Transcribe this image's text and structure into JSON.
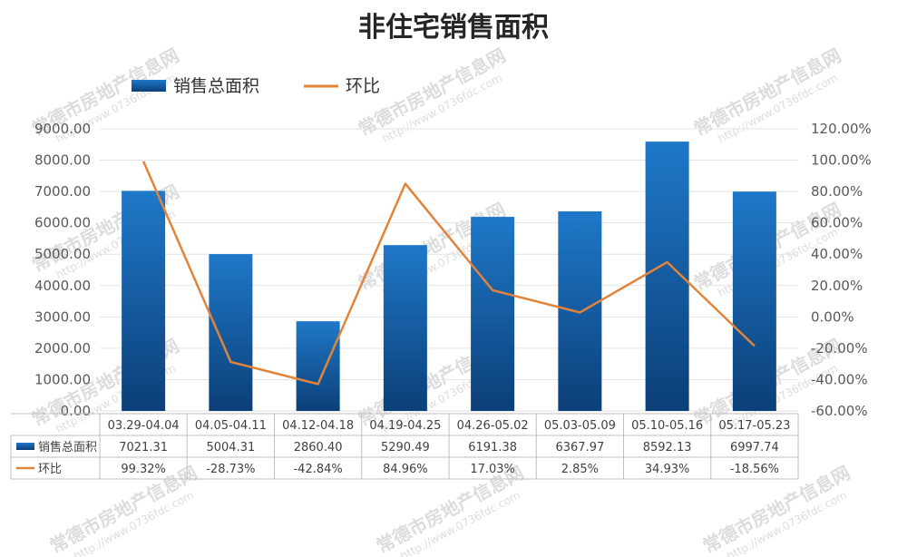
{
  "chart_data": {
    "type": "bar",
    "title": "非住宅销售面积",
    "categories": [
      "03.29-04.04",
      "04.05-04.11",
      "04.12-04.18",
      "04.19-04.25",
      "04.26-05.02",
      "05.03-05.09",
      "05.10-05.16",
      "05.17-05.23"
    ],
    "series": [
      {
        "name": "销售总面积",
        "type": "bar",
        "axis": "left",
        "color": "#1f6fb5",
        "values": [
          7021.31,
          5004.31,
          2860.4,
          5290.49,
          6191.38,
          6367.97,
          8592.13,
          6997.74
        ],
        "labels": [
          "7021.31",
          "5004.31",
          "2860.40",
          "5290.49",
          "6191.38",
          "6367.97",
          "8592.13",
          "6997.74"
        ]
      },
      {
        "name": "环比",
        "type": "line",
        "axis": "right",
        "color": "#e2833a",
        "values": [
          99.32,
          -28.73,
          -42.84,
          84.96,
          17.03,
          2.85,
          34.93,
          -18.56
        ],
        "labels": [
          "99.32%",
          "-28.73%",
          "-42.84%",
          "84.96%",
          "17.03%",
          "2.85%",
          "34.93%",
          "-18.56%"
        ]
      }
    ],
    "ylim_left": [
      0,
      9000
    ],
    "yticks_left": [
      "0.00",
      "1000.00",
      "2000.00",
      "3000.00",
      "4000.00",
      "5000.00",
      "6000.00",
      "7000.00",
      "8000.00",
      "9000.00"
    ],
    "ylim_right": [
      -60,
      120
    ],
    "yticks_right": [
      "-60.00%",
      "-40.00%",
      "-20.00%",
      "0.00%",
      "20.00%",
      "40.00%",
      "60.00%",
      "80.00%",
      "100.00%",
      "120.00%"
    ],
    "grid": true,
    "legend_position": "top-left",
    "data_table": true
  },
  "watermark": {
    "text": "常德市房地产信息网",
    "url": "http://www.0736fdc.com"
  }
}
